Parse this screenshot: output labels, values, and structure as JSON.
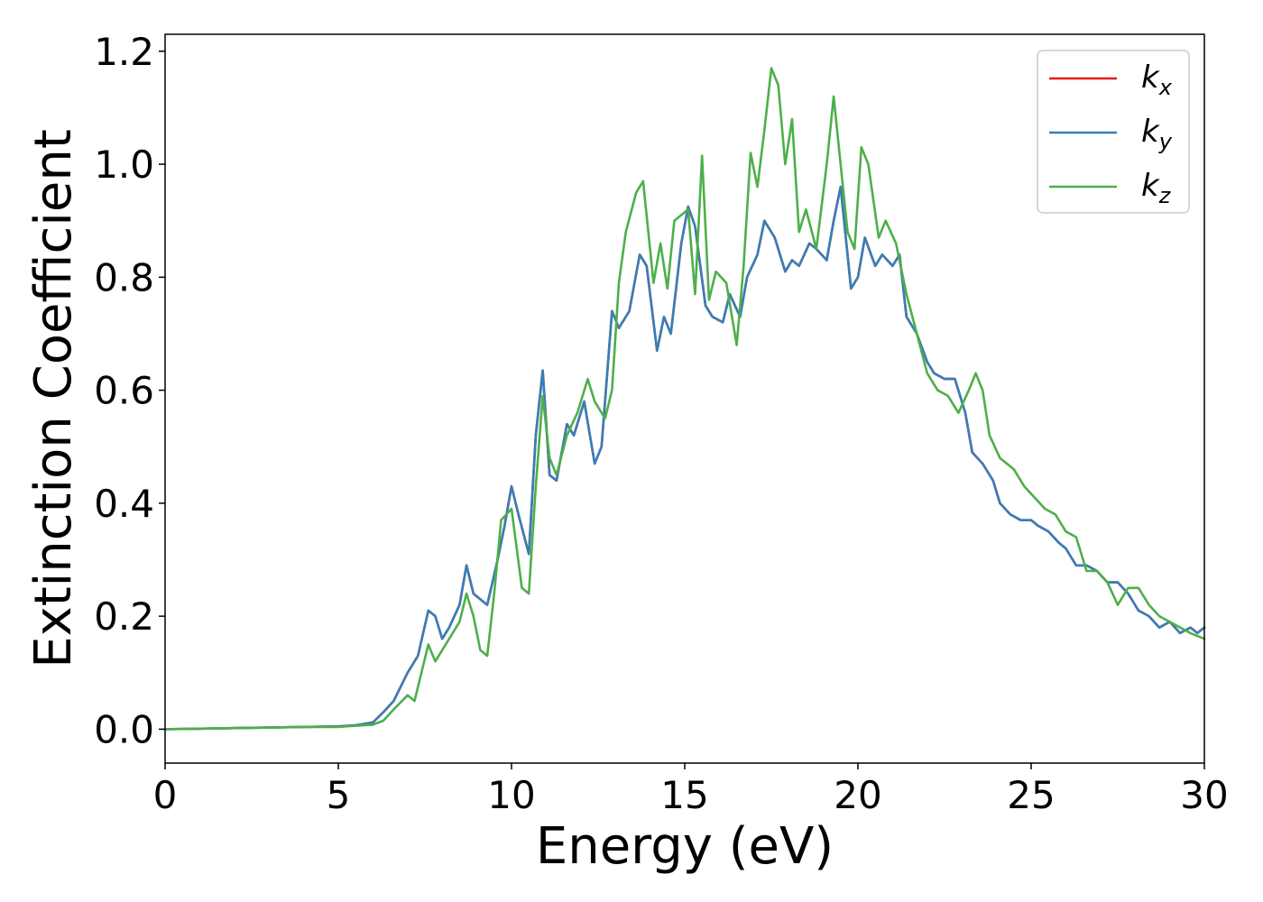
{
  "chart_data": {
    "type": "line",
    "title": "",
    "xlabel": "Energy (eV)",
    "ylabel": "Extinction Coefficient",
    "xlim": [
      0,
      30
    ],
    "ylim": [
      -0.06,
      1.23
    ],
    "xticks": [
      0,
      5,
      10,
      15,
      20,
      25,
      30
    ],
    "xtick_labels": [
      "0",
      "5",
      "10",
      "15",
      "20",
      "25",
      "30"
    ],
    "yticks": [
      0.0,
      0.2,
      0.4,
      0.6,
      0.8,
      1.0,
      1.2
    ],
    "ytick_labels": [
      "0.0",
      "0.2",
      "0.4",
      "0.6",
      "0.8",
      "1.0",
      "1.2"
    ],
    "grid": false,
    "legend_position": "top-right",
    "series": [
      {
        "name": "kx",
        "legend_base": "k",
        "legend_sub": "x",
        "color": "#e41a1c",
        "x": [
          0,
          2,
          4,
          5,
          5.5,
          6,
          6.3,
          6.6,
          7,
          7.3,
          7.6,
          7.8,
          8,
          8.2,
          8.5,
          8.7,
          8.9,
          9.1,
          9.3,
          9.6,
          9.8,
          10,
          10.2,
          10.5,
          10.7,
          10.9,
          11.1,
          11.3,
          11.6,
          11.8,
          12.1,
          12.4,
          12.6,
          12.9,
          13.1,
          13.4,
          13.7,
          13.9,
          14.2,
          14.4,
          14.6,
          14.9,
          15.1,
          15.3,
          15.6,
          15.8,
          16.1,
          16.3,
          16.6,
          16.8,
          17.1,
          17.3,
          17.6,
          17.9,
          18.1,
          18.3,
          18.6,
          18.8,
          19.1,
          19.3,
          19.5,
          19.8,
          20,
          20.2,
          20.5,
          20.7,
          21,
          21.2,
          21.4,
          21.7,
          22,
          22.2,
          22.5,
          22.8,
          23.1,
          23.3,
          23.6,
          23.9,
          24.1,
          24.4,
          24.7,
          25,
          25.2,
          25.5,
          25.8,
          26,
          26.3,
          26.6,
          26.9,
          27.2,
          27.5,
          27.8,
          28.1,
          28.4,
          28.7,
          29,
          29.3,
          29.6,
          29.8,
          30
        ],
        "y": [
          0.0,
          0.002,
          0.004,
          0.005,
          0.007,
          0.012,
          0.03,
          0.05,
          0.1,
          0.13,
          0.21,
          0.2,
          0.16,
          0.18,
          0.22,
          0.29,
          0.24,
          0.23,
          0.22,
          0.3,
          0.36,
          0.43,
          0.38,
          0.31,
          0.52,
          0.635,
          0.45,
          0.44,
          0.54,
          0.52,
          0.58,
          0.47,
          0.5,
          0.74,
          0.71,
          0.74,
          0.84,
          0.82,
          0.67,
          0.73,
          0.7,
          0.86,
          0.925,
          0.89,
          0.75,
          0.73,
          0.72,
          0.77,
          0.73,
          0.8,
          0.84,
          0.9,
          0.87,
          0.81,
          0.83,
          0.82,
          0.86,
          0.85,
          0.83,
          0.9,
          0.96,
          0.78,
          0.8,
          0.87,
          0.82,
          0.84,
          0.82,
          0.84,
          0.73,
          0.7,
          0.65,
          0.63,
          0.62,
          0.62,
          0.56,
          0.49,
          0.47,
          0.44,
          0.4,
          0.38,
          0.37,
          0.37,
          0.36,
          0.35,
          0.33,
          0.32,
          0.29,
          0.29,
          0.28,
          0.26,
          0.26,
          0.24,
          0.21,
          0.2,
          0.18,
          0.19,
          0.17,
          0.18,
          0.17,
          0.18
        ]
      },
      {
        "name": "ky",
        "legend_base": "k",
        "legend_sub": "y",
        "color": "#377eb8",
        "x": [
          0,
          2,
          4,
          5,
          5.5,
          6,
          6.3,
          6.6,
          7,
          7.3,
          7.6,
          7.8,
          8,
          8.2,
          8.5,
          8.7,
          8.9,
          9.1,
          9.3,
          9.6,
          9.8,
          10,
          10.2,
          10.5,
          10.7,
          10.9,
          11.1,
          11.3,
          11.6,
          11.8,
          12.1,
          12.4,
          12.6,
          12.9,
          13.1,
          13.4,
          13.7,
          13.9,
          14.2,
          14.4,
          14.6,
          14.9,
          15.1,
          15.3,
          15.6,
          15.8,
          16.1,
          16.3,
          16.6,
          16.8,
          17.1,
          17.3,
          17.6,
          17.9,
          18.1,
          18.3,
          18.6,
          18.8,
          19.1,
          19.3,
          19.5,
          19.8,
          20,
          20.2,
          20.5,
          20.7,
          21,
          21.2,
          21.4,
          21.7,
          22,
          22.2,
          22.5,
          22.8,
          23.1,
          23.3,
          23.6,
          23.9,
          24.1,
          24.4,
          24.7,
          25,
          25.2,
          25.5,
          25.8,
          26,
          26.3,
          26.6,
          26.9,
          27.2,
          27.5,
          27.8,
          28.1,
          28.4,
          28.7,
          29,
          29.3,
          29.6,
          29.8,
          30
        ],
        "y": [
          0.0,
          0.002,
          0.004,
          0.005,
          0.007,
          0.012,
          0.03,
          0.05,
          0.1,
          0.13,
          0.21,
          0.2,
          0.16,
          0.18,
          0.22,
          0.29,
          0.24,
          0.23,
          0.22,
          0.3,
          0.36,
          0.43,
          0.38,
          0.31,
          0.52,
          0.635,
          0.45,
          0.44,
          0.54,
          0.52,
          0.58,
          0.47,
          0.5,
          0.74,
          0.71,
          0.74,
          0.84,
          0.82,
          0.67,
          0.73,
          0.7,
          0.86,
          0.925,
          0.89,
          0.75,
          0.73,
          0.72,
          0.77,
          0.73,
          0.8,
          0.84,
          0.9,
          0.87,
          0.81,
          0.83,
          0.82,
          0.86,
          0.85,
          0.83,
          0.9,
          0.96,
          0.78,
          0.8,
          0.87,
          0.82,
          0.84,
          0.82,
          0.84,
          0.73,
          0.7,
          0.65,
          0.63,
          0.62,
          0.62,
          0.56,
          0.49,
          0.47,
          0.44,
          0.4,
          0.38,
          0.37,
          0.37,
          0.36,
          0.35,
          0.33,
          0.32,
          0.29,
          0.29,
          0.28,
          0.26,
          0.26,
          0.24,
          0.21,
          0.2,
          0.18,
          0.19,
          0.17,
          0.18,
          0.17,
          0.18
        ]
      },
      {
        "name": "kz",
        "legend_base": "k",
        "legend_sub": "z",
        "color": "#4daf4a",
        "x": [
          0,
          2,
          4,
          5,
          6,
          6.3,
          6.6,
          7,
          7.2,
          7.6,
          7.8,
          8.2,
          8.5,
          8.7,
          8.9,
          9.1,
          9.3,
          9.5,
          9.7,
          10,
          10.3,
          10.5,
          10.7,
          10.9,
          11.1,
          11.3,
          11.6,
          11.9,
          12.2,
          12.4,
          12.7,
          12.9,
          13.1,
          13.3,
          13.6,
          13.8,
          14.1,
          14.3,
          14.5,
          14.7,
          14.9,
          15.1,
          15.3,
          15.5,
          15.7,
          15.9,
          16.2,
          16.5,
          16.7,
          16.9,
          17.1,
          17.3,
          17.5,
          17.7,
          17.9,
          18.1,
          18.3,
          18.5,
          18.8,
          19.1,
          19.3,
          19.5,
          19.7,
          19.9,
          20.1,
          20.3,
          20.6,
          20.8,
          21.1,
          21.4,
          21.7,
          22,
          22.3,
          22.6,
          22.9,
          23.2,
          23.4,
          23.6,
          23.8,
          24.1,
          24.5,
          24.8,
          25.1,
          25.4,
          25.7,
          26,
          26.3,
          26.6,
          26.9,
          27.2,
          27.5,
          27.8,
          28.1,
          28.4,
          28.7,
          29,
          29.3,
          29.6,
          30
        ],
        "y": [
          0.0,
          0.002,
          0.004,
          0.004,
          0.008,
          0.015,
          0.035,
          0.06,
          0.05,
          0.15,
          0.12,
          0.16,
          0.19,
          0.24,
          0.2,
          0.14,
          0.13,
          0.24,
          0.37,
          0.39,
          0.25,
          0.24,
          0.43,
          0.59,
          0.48,
          0.45,
          0.52,
          0.56,
          0.62,
          0.58,
          0.55,
          0.6,
          0.79,
          0.88,
          0.95,
          0.97,
          0.79,
          0.86,
          0.78,
          0.9,
          0.91,
          0.92,
          0.77,
          1.015,
          0.76,
          0.81,
          0.79,
          0.68,
          0.82,
          1.02,
          0.96,
          1.06,
          1.17,
          1.14,
          1.0,
          1.08,
          0.88,
          0.92,
          0.85,
          1.0,
          1.12,
          1.0,
          0.88,
          0.85,
          1.03,
          1.0,
          0.87,
          0.9,
          0.86,
          0.77,
          0.7,
          0.63,
          0.6,
          0.59,
          0.56,
          0.6,
          0.63,
          0.6,
          0.52,
          0.48,
          0.46,
          0.43,
          0.41,
          0.39,
          0.38,
          0.35,
          0.34,
          0.28,
          0.28,
          0.26,
          0.22,
          0.25,
          0.25,
          0.22,
          0.2,
          0.19,
          0.18,
          0.17,
          0.16
        ]
      }
    ]
  }
}
